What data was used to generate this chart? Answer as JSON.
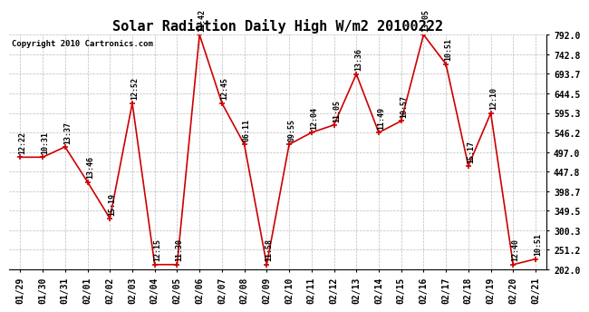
{
  "title": "Solar Radiation Daily High W/m2 20100222",
  "copyright": "Copyright 2010 Cartronics.com",
  "dates": [
    "01/29",
    "01/30",
    "01/31",
    "02/01",
    "02/02",
    "02/03",
    "02/04",
    "02/05",
    "02/06",
    "02/07",
    "02/08",
    "02/09",
    "02/10",
    "02/11",
    "02/12",
    "02/13",
    "02/14",
    "02/15",
    "02/16",
    "02/17",
    "02/18",
    "02/19",
    "02/20",
    "02/21"
  ],
  "values": [
    484,
    484,
    510,
    422,
    330,
    620,
    214,
    214,
    792,
    620,
    516,
    214,
    516,
    546,
    565,
    693,
    546,
    575,
    792,
    718,
    462,
    595,
    214,
    228
  ],
  "times": [
    "12:22",
    "10:31",
    "13:37",
    "13:46",
    "15:19",
    "12:52",
    "12:15",
    "11:30",
    "11:42",
    "12:45",
    "06:11",
    "11:58",
    "09:55",
    "12:04",
    "11:05",
    "13:36",
    "11:49",
    "10:57",
    "13:05",
    "10:51",
    "15:17",
    "12:10",
    "12:40",
    "10:51"
  ],
  "ylim": [
    202.0,
    792.0
  ],
  "yticks": [
    202.0,
    251.2,
    300.3,
    349.5,
    398.7,
    447.8,
    497.0,
    546.2,
    595.3,
    644.5,
    693.7,
    742.8,
    792.0
  ],
  "ytick_labels": [
    "202.0",
    "251.2",
    "300.3",
    "349.5",
    "398.7",
    "447.8",
    "497.0",
    "546.2",
    "595.3",
    "644.5",
    "693.7",
    "742.8",
    "792.0"
  ],
  "line_color": "#cc0000",
  "bg_color": "#ffffff",
  "grid_color": "#aaaaaa",
  "title_fontsize": 11,
  "tick_fontsize": 7,
  "annotation_fontsize": 6,
  "copyright_fontsize": 6.5
}
